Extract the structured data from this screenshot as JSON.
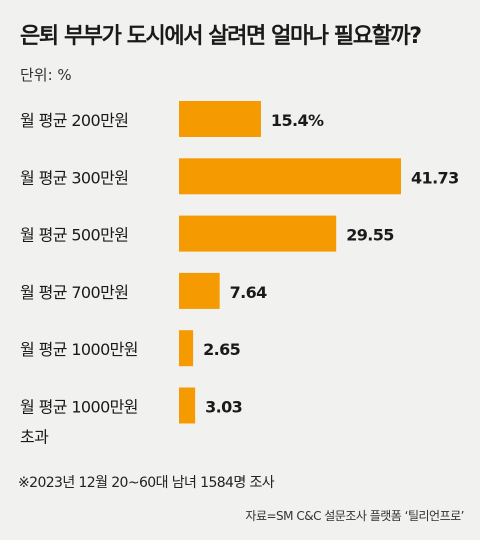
{
  "title": "은퇴 부부가 도시에서 살려면 얼마나 필요할까?",
  "unit_label": "단위: %",
  "footnote": "※2023년 12월 20~60대 남녀 1584명 조사",
  "source": "자료=SM C&C 설문조사 플랫폼 ‘틸리언프로’",
  "colors": {
    "bar": "#f59a00",
    "background": "#f1f1ef",
    "text": "#1a1a1a"
  },
  "chart_data": {
    "type": "bar",
    "orientation": "horizontal",
    "categories": [
      [
        "월 평균 200만원"
      ],
      [
        "월 평균 300만원"
      ],
      [
        "월 평균 500만원"
      ],
      [
        "월 평균 700만원"
      ],
      [
        "월 평균 1000만원"
      ],
      [
        "월 평균 1000만원",
        "초과"
      ]
    ],
    "values": [
      15.4,
      41.73,
      29.55,
      7.64,
      2.65,
      3.03
    ],
    "value_labels": [
      "15.4%",
      "41.73",
      "29.55",
      "7.64",
      "2.65",
      "3.03"
    ],
    "xlim": [
      0,
      41.73
    ],
    "grid": false,
    "legend": "none"
  }
}
